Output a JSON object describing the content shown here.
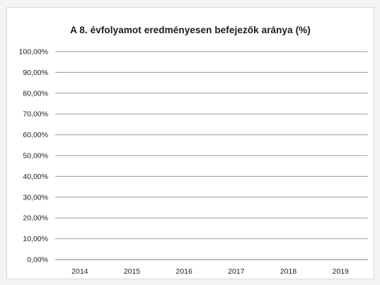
{
  "chart_data": {
    "type": "line",
    "title": "A 8. évfolyamot eredményesen befejezők aránya (%)",
    "xlabel": "",
    "ylabel": "",
    "categories": [
      "2014",
      "2015",
      "2016",
      "2017",
      "2018",
      "2019"
    ],
    "y_ticks": [
      "0,00%",
      "10,00%",
      "20,00%",
      "30,00%",
      "40,00%",
      "50,00%",
      "60,00%",
      "70,00%",
      "80,00%",
      "90,00%",
      "100,00%"
    ],
    "ylim": [
      0,
      100
    ],
    "series": [],
    "grid": true,
    "legend": "none",
    "colors": {
      "gridline": "#9a9a9a",
      "axis": "#7a7a7a",
      "background": "#ffffff",
      "text": "#1e1e1e"
    }
  }
}
